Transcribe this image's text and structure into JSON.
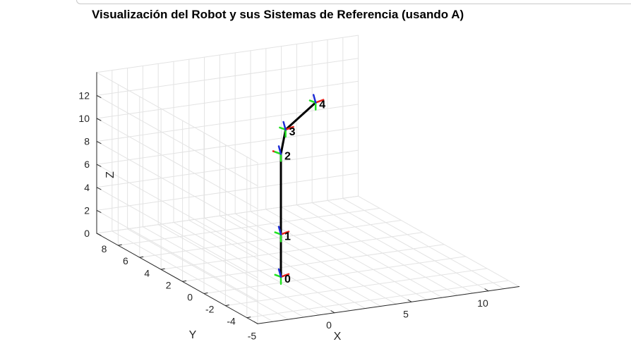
{
  "chart_data": {
    "type": "line",
    "title": "Visualización del Robot y sus Sistemas de Referencia (usando A)",
    "xlabel": "X",
    "ylabel": "Y",
    "zlabel": "Z",
    "xlim": [
      -5,
      12
    ],
    "ylim": [
      -5,
      10
    ],
    "zlim": [
      0,
      14
    ],
    "xticks": [
      "-5",
      "0",
      "5",
      "10"
    ],
    "yticks": [
      "-4",
      "-2",
      "0",
      "2",
      "4",
      "6",
      "8"
    ],
    "zticks": [
      "0",
      "2",
      "4",
      "6",
      "8",
      "10",
      "12"
    ],
    "grid": true,
    "series": [
      {
        "points": [
          {
            "label": "0",
            "x": 0,
            "y": 0,
            "z": 0.5
          },
          {
            "label": "1",
            "x": 0,
            "y": 0,
            "z": 4.2
          },
          {
            "label": "2",
            "x": 0,
            "y": 0,
            "z": 11.2
          },
          {
            "label": "3",
            "x": 1,
            "y": 1,
            "z": 12.6
          },
          {
            "label": "4",
            "x": 4,
            "y": 2.5,
            "z": 13.6
          }
        ]
      }
    ],
    "frame_axis_colors": {
      "x": "#e8211a",
      "y": "#22e322",
      "z": "#1c2bd6"
    }
  }
}
